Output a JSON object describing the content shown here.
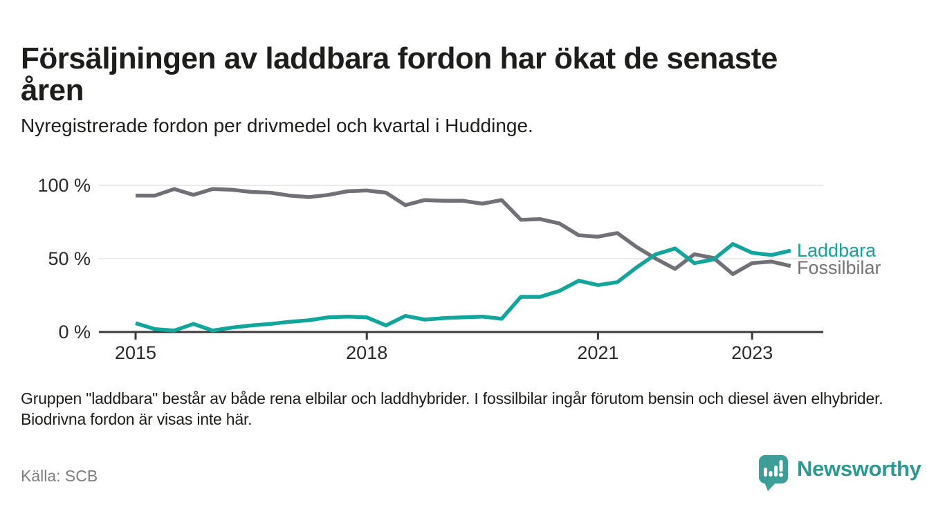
{
  "header": {
    "title_lines": [
      "Försäljningen av laddbara fordon har ökat de senaste",
      "åren"
    ],
    "subtitle": "Nyregistrerade fordon per drivmedel och kvartal i Huddinge."
  },
  "chart_data": {
    "type": "line",
    "x_unit": "quarter",
    "x_start": "2015 Q1",
    "x_end": "2023 Q3",
    "x_tick_labels": [
      "2015",
      "2018",
      "2021",
      "2023"
    ],
    "x_tick_quarter_indices": [
      0,
      12,
      24,
      32
    ],
    "y_tick_labels": [
      "100 %",
      "50 %",
      "0 %"
    ],
    "y_tick_values": [
      100,
      50,
      0
    ],
    "ylim": [
      0,
      100
    ],
    "grid": "horizontal",
    "legend_position": "right-of-line-ends",
    "series": [
      {
        "name": "Fossilbilar",
        "color": "#717076",
        "values": [
          93,
          93,
          97.5,
          93.5,
          97.5,
          97,
          95.5,
          95,
          93,
          92,
          93.5,
          96,
          96.5,
          95,
          86.5,
          90,
          89.5,
          89.5,
          87.5,
          90,
          76.5,
          77,
          74,
          66,
          65,
          67.5,
          58,
          50,
          43,
          53,
          50.5,
          39.5,
          47,
          48,
          45
        ]
      },
      {
        "name": "Laddbara",
        "color": "#10a69b",
        "values": [
          6,
          2,
          1,
          5.5,
          1,
          3,
          4.5,
          5.5,
          7,
          8,
          10,
          10.5,
          10,
          4.5,
          11,
          8.5,
          9.5,
          10,
          10.5,
          9,
          24,
          24,
          28,
          35,
          32,
          34,
          44,
          53,
          57,
          47,
          49.5,
          60,
          54,
          52.5,
          55.5
        ]
      }
    ]
  },
  "footnote": "Gruppen \"laddbara\" består av både rena elbilar och laddhybrider. I fossilbilar ingår förutom bensin och diesel även elhybrider. Biodrivna fordon är visas inte här.",
  "source": "Källa: SCB",
  "logo": {
    "text": "Newsworthy"
  },
  "colors": {
    "accent_teal": "#10a69b",
    "neutral_gray": "#717076",
    "axis": "#3b3b3b",
    "gridline": "#e4e4e4",
    "logo_teal": "#3d9e97"
  }
}
